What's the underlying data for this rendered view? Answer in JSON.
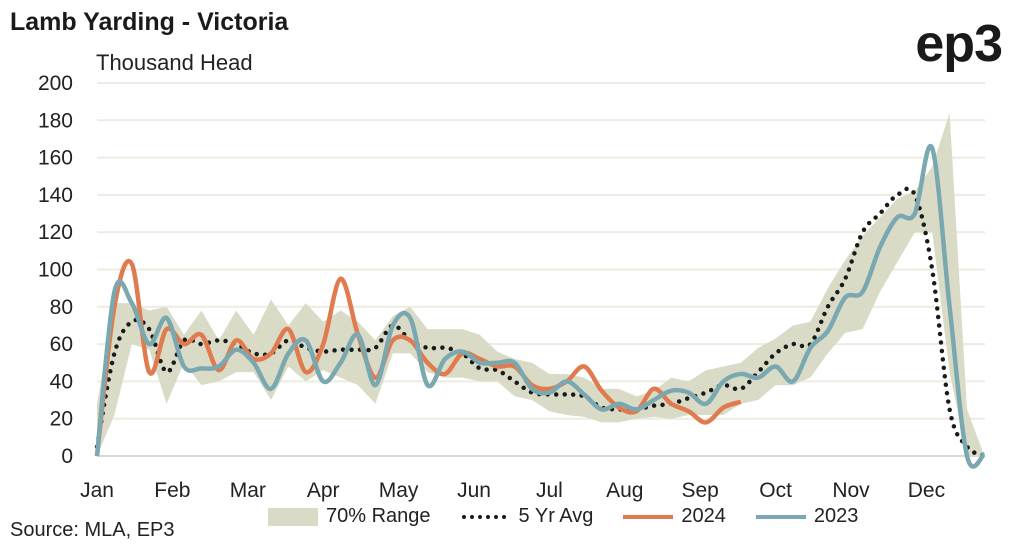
{
  "title": "Lamb Yarding - Victoria",
  "logo": "ep3",
  "source": "Source: MLA, EP3",
  "colors": {
    "y2024": "#E07B4F",
    "y2023": "#7AA8B0",
    "range": "#DADBC7",
    "avg": "#1a1a1a",
    "grid": "#ECECE2"
  },
  "chart_data": {
    "type": "line",
    "title": "Lamb Yarding - Victoria",
    "ylabel": "Thousand Head",
    "xlabel": "",
    "ylim": [
      0,
      200
    ],
    "yticks": [
      0,
      20,
      40,
      60,
      80,
      100,
      120,
      140,
      160,
      180,
      200
    ],
    "xticks": [
      "Jan",
      "Feb",
      "Mar",
      "Apr",
      "May",
      "Jun",
      "Jul",
      "Aug",
      "Sep",
      "Oct",
      "Nov",
      "Dec"
    ],
    "x_unit": "week of year (1-52)",
    "grid": true,
    "legend_placement": "bottom",
    "legend": [
      "70% Range",
      "5 Yr Avg",
      "2024",
      "2023"
    ],
    "range": {
      "name": "70% Range",
      "low": [
        0,
        22,
        60,
        57,
        28,
        50,
        38,
        40,
        45,
        45,
        30,
        48,
        40,
        46,
        42,
        38,
        28,
        55,
        55,
        45,
        42,
        42,
        40,
        40,
        32,
        30,
        24,
        22,
        21,
        18,
        18,
        20,
        21,
        20,
        22,
        22,
        22,
        28,
        30,
        38,
        38,
        42,
        55,
        66,
        68,
        88,
        104,
        120,
        120,
        45,
        0,
        0
      ],
      "high": [
        28,
        82,
        82,
        78,
        80,
        65,
        78,
        62,
        78,
        65,
        84,
        70,
        82,
        72,
        78,
        72,
        62,
        75,
        80,
        68,
        68,
        68,
        65,
        56,
        52,
        50,
        44,
        44,
        42,
        36,
        36,
        32,
        35,
        42,
        40,
        46,
        48,
        50,
        58,
        63,
        70,
        72,
        90,
        105,
        118,
        128,
        138,
        142,
        155,
        184,
        25,
        0
      ]
    },
    "series": [
      {
        "name": "5 Yr Avg",
        "values": [
          5,
          55,
          72,
          68,
          45,
          62,
          60,
          62,
          60,
          55,
          55,
          62,
          58,
          56,
          57,
          57,
          58,
          70,
          62,
          58,
          58,
          55,
          47,
          46,
          40,
          34,
          33,
          33,
          32,
          26,
          25,
          25,
          27,
          28,
          31,
          34,
          38,
          36,
          45,
          55,
          60,
          60,
          80,
          95,
          120,
          130,
          140,
          140,
          100,
          25,
          5,
          0
        ]
      },
      {
        "name": "2024",
        "values": [
          0,
          80,
          103,
          45,
          68,
          60,
          65,
          46,
          62,
          52,
          55,
          68,
          45,
          60,
          95,
          65,
          42,
          62,
          62,
          50,
          44,
          55,
          52,
          48,
          48,
          38,
          36,
          40,
          48,
          35,
          26,
          24,
          36,
          28,
          24,
          18,
          26,
          29
        ]
      },
      {
        "name": "2023",
        "values": [
          0,
          88,
          82,
          60,
          74,
          48,
          47,
          48,
          57,
          50,
          36,
          55,
          62,
          40,
          50,
          65,
          38,
          70,
          74,
          38,
          52,
          56,
          50,
          50,
          50,
          36,
          34,
          40,
          33,
          25,
          28,
          25,
          30,
          35,
          34,
          28,
          40,
          44,
          42,
          48,
          40,
          58,
          67,
          85,
          88,
          112,
          128,
          130,
          165,
          80,
          0,
          1
        ]
      }
    ]
  }
}
